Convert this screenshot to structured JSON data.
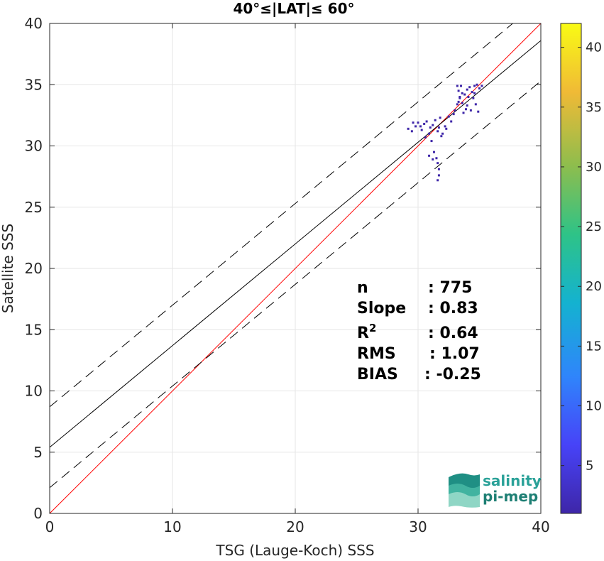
{
  "chart_data": {
    "type": "scatter",
    "title": "40°≤|LAT|≤ 60°",
    "xlabel": "TSG (Lauge-Koch) SSS",
    "ylabel": "Satellite SSS",
    "xlim": [
      0,
      40
    ],
    "ylim": [
      0,
      40
    ],
    "xticks": [
      0,
      10,
      20,
      30,
      40
    ],
    "yticks": [
      0,
      5,
      10,
      15,
      20,
      25,
      30,
      35,
      40
    ],
    "grid": true,
    "lines": {
      "one_to_one": {
        "color": "#ff0000",
        "slope": 1,
        "intercept": 0
      },
      "fit": {
        "color": "#000000",
        "slope": 0.83,
        "intercept": 5.4
      },
      "fit_upper": {
        "color": "#000000",
        "style": "dashed",
        "slope": 0.83,
        "intercept": 8.7
      },
      "fit_lower": {
        "color": "#000000",
        "style": "dashed",
        "slope": 0.83,
        "intercept": 2.1
      }
    },
    "points": [
      [
        29.2,
        31.4
      ],
      [
        29.5,
        31.2
      ],
      [
        29.8,
        31.6
      ],
      [
        30.0,
        31.9
      ],
      [
        30.3,
        31.3
      ],
      [
        30.5,
        31.8
      ],
      [
        30.7,
        32.0
      ],
      [
        31.0,
        31.5
      ],
      [
        31.2,
        31.7
      ],
      [
        31.4,
        32.1
      ],
      [
        31.6,
        31.2
      ],
      [
        31.8,
        32.3
      ],
      [
        30.9,
        31.0
      ],
      [
        30.6,
        30.7
      ],
      [
        31.1,
        30.4
      ],
      [
        31.3,
        29.5
      ],
      [
        31.5,
        29.0
      ],
      [
        31.6,
        28.6
      ],
      [
        31.7,
        28.1
      ],
      [
        31.7,
        27.6
      ],
      [
        31.6,
        27.2
      ],
      [
        30.9,
        29.2
      ],
      [
        31.2,
        28.9
      ],
      [
        31.9,
        30.8
      ],
      [
        32.2,
        31.6
      ],
      [
        32.5,
        32.4
      ],
      [
        32.7,
        32.0
      ],
      [
        33.0,
        32.9
      ],
      [
        33.2,
        33.4
      ],
      [
        33.4,
        33.9
      ],
      [
        33.6,
        33.5
      ],
      [
        33.8,
        34.2
      ],
      [
        34.0,
        34.6
      ],
      [
        34.2,
        34.8
      ],
      [
        34.4,
        34.4
      ],
      [
        34.6,
        34.9
      ],
      [
        34.8,
        35.0
      ],
      [
        35.0,
        34.7
      ],
      [
        35.2,
        34.9
      ],
      [
        33.2,
        34.9
      ],
      [
        33.3,
        34.5
      ],
      [
        33.5,
        34.9
      ],
      [
        34.0,
        33.3
      ],
      [
        34.5,
        33.9
      ],
      [
        34.7,
        33.4
      ],
      [
        34.9,
        32.8
      ],
      [
        34.3,
        32.9
      ],
      [
        33.7,
        32.7
      ],
      [
        33.4,
        34.0
      ],
      [
        33.3,
        33.6
      ],
      [
        33.6,
        34.3
      ],
      [
        34.1,
        34.0
      ],
      [
        33.9,
        33.0
      ],
      [
        34.6,
        34.3
      ],
      [
        32.9,
        32.6
      ],
      [
        32.3,
        31.4
      ],
      [
        32.0,
        31.0
      ],
      [
        31.7,
        31.5
      ],
      [
        29.6,
        31.9
      ],
      [
        30.2,
        31.6
      ]
    ],
    "colorbar": {
      "range": [
        1,
        42
      ],
      "ticks": [
        5,
        10,
        15,
        20,
        25,
        30,
        35,
        40
      ],
      "colors": [
        "#3e26a8",
        "#4743f8",
        "#2f85fb",
        "#14b2d0",
        "#2ec387",
        "#8ebd4d",
        "#f0ba36",
        "#f9fb14"
      ]
    },
    "stats": [
      {
        "label": "n",
        "value": ": 775"
      },
      {
        "label": "Slope",
        "value": ": 0.83"
      },
      {
        "label": "R",
        "sup": "2",
        "value": ": 0.64"
      },
      {
        "label": "RMS",
        "value": ": 1.07"
      },
      {
        "label": "BIAS",
        "value": ": -0.25"
      }
    ]
  },
  "logo": {
    "line1": "salinity",
    "line2": "pi-mep",
    "color1": "#2aa198",
    "color2": "#1e7f74"
  }
}
